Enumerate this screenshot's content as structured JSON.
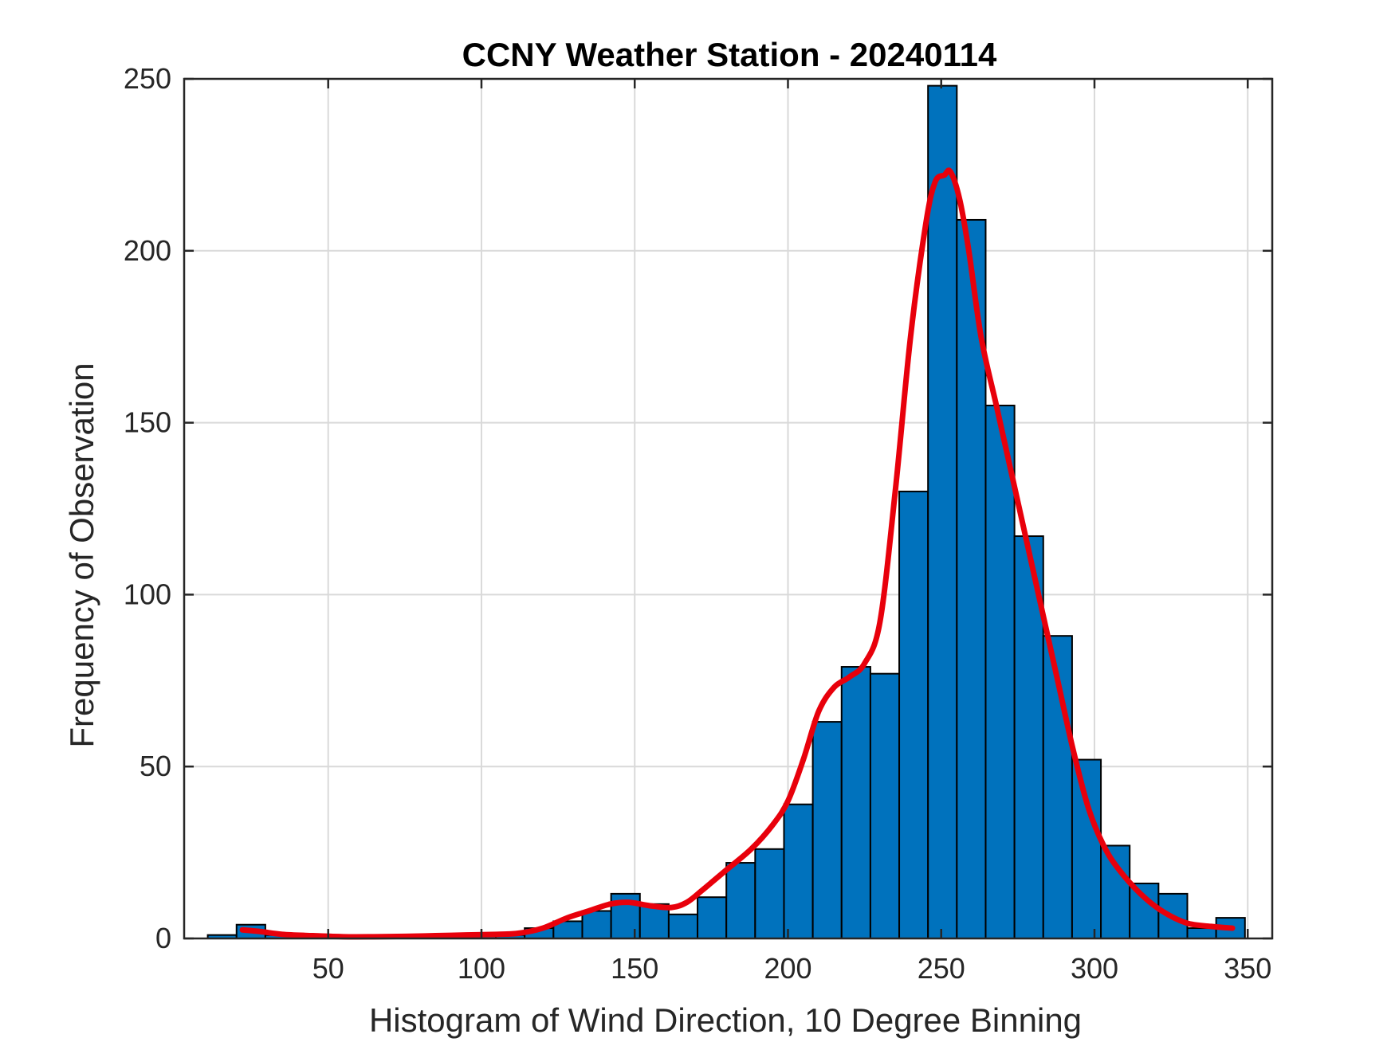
{
  "chart_data": {
    "type": "bar",
    "title": "CCNY Weather Station - 20240114",
    "xlabel": "Histogram of Wind Direction, 10 Degree Binning",
    "ylabel": "Frequency of Observation",
    "xlim": [
      3,
      358
    ],
    "ylim": [
      0,
      250
    ],
    "x_ticks": [
      50,
      100,
      150,
      200,
      250,
      300,
      350
    ],
    "y_ticks": [
      0,
      50,
      100,
      150,
      200,
      250
    ],
    "bin_width": 9.4,
    "grid": true,
    "colors": {
      "bars": "#0072bd",
      "bar_edge": "#000000",
      "curve": "#e8000b",
      "grid": "#d9d9d9",
      "axes": "#262626"
    },
    "series": [
      {
        "type": "histogram",
        "bin_starts": [
          10.7,
          20.1,
          29.5,
          38.9,
          48.3,
          57.7,
          67.1,
          76.5,
          85.9,
          95.3,
          104.7,
          114.1,
          123.5,
          132.9,
          142.3,
          151.7,
          161.1,
          170.5,
          179.9,
          189.3,
          198.7,
          208.1,
          217.5,
          226.9,
          236.3,
          245.7,
          255.1,
          264.5,
          273.9,
          283.3,
          292.7,
          302.1,
          311.5,
          320.9,
          330.3,
          339.7
        ],
        "values": [
          1,
          4,
          1,
          1,
          0,
          0,
          1,
          1,
          1,
          1,
          1,
          3,
          5,
          8,
          13,
          10,
          7,
          12,
          22,
          26,
          39,
          63,
          79,
          77,
          130,
          248,
          209,
          155,
          117,
          88,
          52,
          27,
          16,
          13,
          3,
          6
        ]
      },
      {
        "type": "line",
        "x": [
          22,
          28,
          35,
          45,
          55,
          65,
          75,
          85,
          95,
          105,
          112,
          120,
          128,
          135,
          142,
          148,
          155,
          162,
          167,
          172,
          180,
          188,
          195,
          200,
          205,
          210,
          215,
          220,
          225,
          230,
          235,
          240,
          245,
          248,
          251,
          253,
          256,
          259,
          263,
          268,
          273,
          278,
          283,
          288,
          293,
          298,
          303,
          308,
          315,
          322,
          330,
          338,
          345
        ],
        "y": [
          2.5,
          2,
          1.2,
          0.8,
          0.5,
          0.5,
          0.6,
          0.8,
          1,
          1.2,
          1.5,
          3,
          6,
          8,
          10,
          10.5,
          9.5,
          9,
          10.5,
          14,
          20,
          26,
          33,
          40,
          52,
          66,
          73,
          76,
          80,
          92,
          130,
          175,
          208,
          220,
          222,
          223,
          215,
          200,
          175,
          155,
          135,
          115,
          95,
          75,
          55,
          38,
          27,
          20,
          13,
          8,
          4.5,
          3.5,
          3
        ]
      }
    ]
  }
}
